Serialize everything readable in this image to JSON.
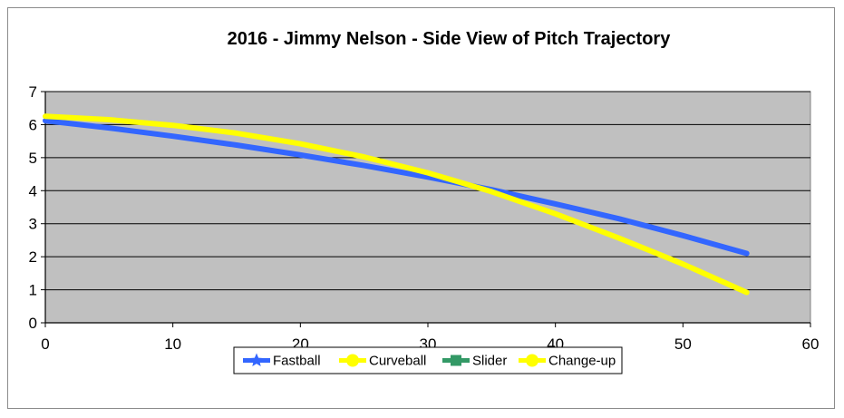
{
  "chart_data": {
    "type": "line",
    "title": "2016 - Jimmy Nelson - Side View of Pitch Trajectory",
    "xlabel": "",
    "ylabel": "",
    "xlim": [
      0,
      60
    ],
    "ylim": [
      0,
      7
    ],
    "x_ticks": [
      0,
      10,
      20,
      30,
      40,
      50,
      60
    ],
    "y_ticks": [
      0,
      1,
      2,
      3,
      4,
      5,
      6,
      7
    ],
    "grid": "horizontal",
    "legend_position": "bottom",
    "series": [
      {
        "name": "Fastball",
        "color": "#3366ff",
        "marker": "star",
        "x": [
          0,
          5,
          10,
          15,
          20,
          25,
          30,
          35,
          40,
          45,
          50,
          55
        ],
        "y": [
          6.12,
          5.9,
          5.65,
          5.38,
          5.08,
          4.76,
          4.41,
          4.03,
          3.6,
          3.15,
          2.64,
          2.1
        ]
      },
      {
        "name": "Curveball",
        "color": "#ffff00",
        "marker": "circle",
        "x": [],
        "y": []
      },
      {
        "name": "Slider",
        "color": "#339966",
        "marker": "square",
        "x": [],
        "y": []
      },
      {
        "name": "Change-up",
        "color": "#ffff00",
        "marker": "circle",
        "x": [
          0,
          5,
          10,
          15,
          20,
          25,
          30,
          35,
          40,
          45,
          50,
          55
        ],
        "y": [
          6.25,
          6.15,
          5.98,
          5.74,
          5.42,
          5.02,
          4.54,
          3.97,
          3.3,
          2.56,
          1.78,
          0.92
        ]
      }
    ]
  }
}
